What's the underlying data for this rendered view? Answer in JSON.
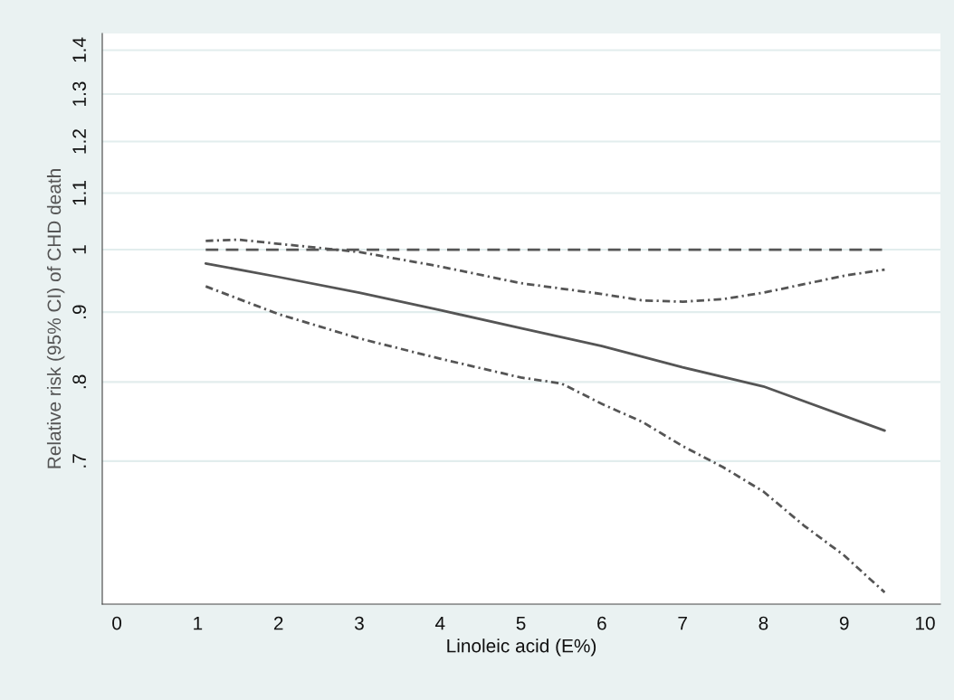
{
  "chart_data": {
    "type": "line",
    "xlabel": "Linoleic acid (E%)",
    "ylabel": "Relative risk (95% CI) of CHD death",
    "series": [
      {
        "color": "#555555",
        "line_style": "solid",
        "x": [
          1.1,
          2,
          3,
          4,
          5,
          6,
          7,
          8,
          9.5
        ],
        "values": [
          0.977,
          0.955,
          0.93,
          0.903,
          0.876,
          0.85,
          0.82,
          0.794,
          0.737
        ]
      },
      {
        "color": "#555555",
        "line_style": "dashdot",
        "x": [
          1.1,
          1.5,
          2,
          3,
          4,
          5,
          6,
          6.5,
          7,
          7.5,
          8,
          9,
          9.5
        ],
        "values": [
          1.015,
          1.017,
          1.01,
          0.996,
          0.972,
          0.945,
          0.928,
          0.918,
          0.916,
          0.92,
          0.93,
          0.957,
          0.967
        ]
      },
      {
        "color": "#555555",
        "line_style": "dashdot",
        "x": [
          1.1,
          2,
          3,
          4,
          5,
          5.5,
          6,
          6.5,
          7,
          7.5,
          8,
          8.5,
          9,
          9.5
        ],
        "values": [
          0.94,
          0.897,
          0.861,
          0.832,
          0.806,
          0.798,
          0.771,
          0.748,
          0.718,
          0.693,
          0.665,
          0.628,
          0.597,
          0.561
        ]
      },
      {
        "color": "#555555",
        "line_style": "dashed",
        "x": [
          1.1,
          9.5
        ],
        "values": [
          1,
          1
        ]
      }
    ],
    "log": "y",
    "xlim": [
      -0.18,
      10.19
    ],
    "xticks": [
      0,
      1,
      2,
      3,
      4,
      5,
      6,
      7,
      8,
      9,
      10
    ],
    "ylim": [
      0.55,
      1.44
    ],
    "yticks": [
      {
        "value": 0.7,
        "label": ".7"
      },
      {
        "value": 0.8,
        "label": ".8"
      },
      {
        "value": 0.9,
        "label": ".9"
      },
      1,
      1.1,
      1.2,
      1.3,
      1.4
    ],
    "grid": "y",
    "legend": false
  }
}
